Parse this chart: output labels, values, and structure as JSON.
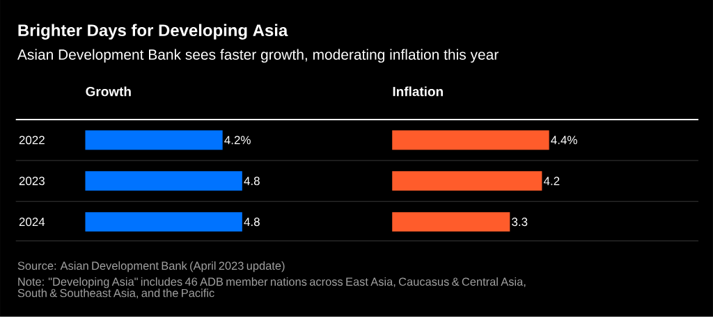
{
  "chart_data": [
    {
      "type": "other",
      "title": "Brighter Days for Developing Asia",
      "subtitle": "Asian Development Bank sees faster growth, moderating inflation this year",
      "annotations": [
        "Source: Asian Development Bank (April 2023 update)",
        "Note: \"Developing Asia\" includes 46 ADB member nations across East Asia, Caucasus & Central Asia, South & Southeast Asia, and the Pacific"
      ]
    },
    {
      "type": "bar",
      "orientation": "horizontal",
      "title": "Growth",
      "categories": [
        "2022",
        "2023",
        "2024"
      ],
      "values": [
        4.2,
        4.8,
        4.8
      ],
      "value_labels": [
        "4.2%",
        "4.8",
        "4.8"
      ],
      "color": "#0073ff",
      "tick_labels": "y"
    },
    {
      "type": "bar",
      "orientation": "horizontal",
      "title": "Inflation",
      "categories": [
        "2022",
        "2023",
        "2024"
      ],
      "values": [
        4.4,
        4.2,
        3.3
      ],
      "value_labels": [
        "4.4%",
        "4.2",
        "3.3"
      ],
      "color": "#ff5c2b",
      "tick_labels": false
    }
  ]
}
